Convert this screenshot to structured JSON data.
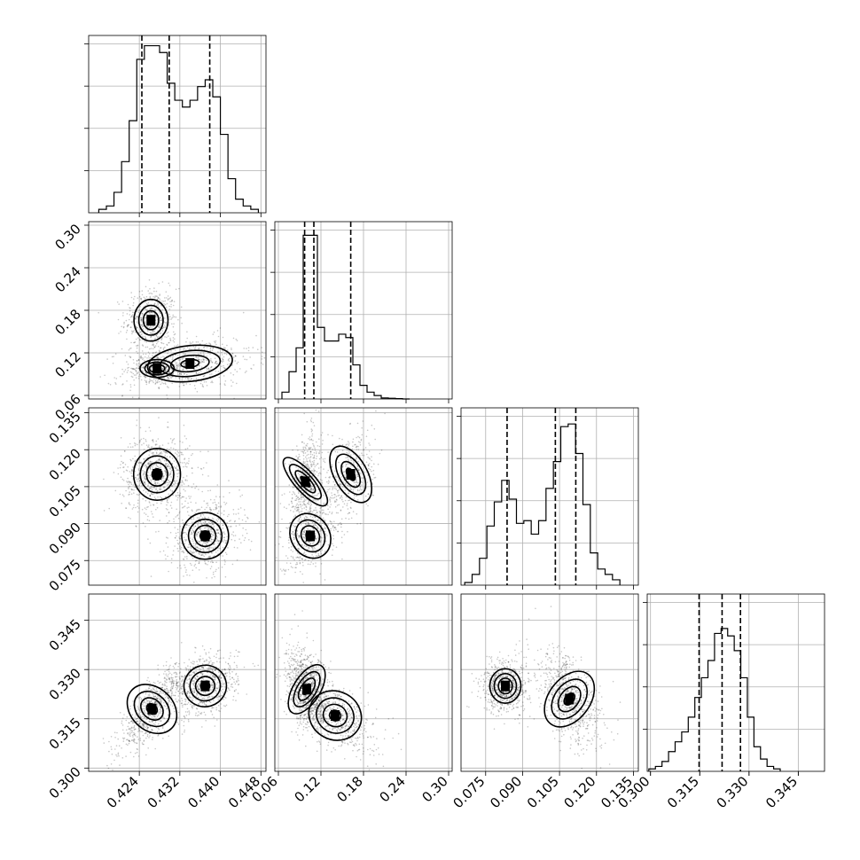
{
  "chart_data": {
    "type": "corner",
    "grid": true,
    "parameters": [
      {
        "range": [
          0.414,
          0.449
        ],
        "ticks": [
          0.424,
          0.432,
          0.44,
          0.448
        ],
        "tick_labels": [
          "0.424",
          "0.432",
          "0.440",
          "0.448"
        ],
        "quantiles": [
          0.4245,
          0.4299,
          0.4379
        ],
        "hist_edges": [
          0.416,
          0.4175,
          0.419,
          0.4205,
          0.422,
          0.4235,
          0.425,
          0.4265,
          0.428,
          0.4295,
          0.431,
          0.4325,
          0.434,
          0.4355,
          0.437,
          0.4385,
          0.44,
          0.4415,
          0.443,
          0.4445,
          0.446,
          0.4475
        ],
        "hist_counts": [
          1,
          2,
          6,
          15,
          27,
          45,
          49,
          49,
          47,
          38,
          33,
          31,
          33,
          37,
          39,
          34,
          23,
          10,
          4,
          2,
          1
        ],
        "hist_ymax": 52
      },
      {
        "range": [
          0.055,
          0.305
        ],
        "ticks": [
          0.06,
          0.12,
          0.18,
          0.24,
          0.3
        ],
        "tick_labels": [
          "0.06",
          "0.12",
          "0.18",
          "0.24",
          "0.30"
        ],
        "quantiles": [
          0.097,
          0.11,
          0.162
        ],
        "hist_edges": [
          0.065,
          0.075,
          0.085,
          0.095,
          0.105,
          0.115,
          0.125,
          0.135,
          0.145,
          0.155,
          0.165,
          0.175,
          0.185,
          0.195,
          0.205,
          0.215,
          0.225,
          0.235,
          0.245
        ],
        "hist_counts": [
          2,
          8,
          15,
          48,
          48,
          21,
          17,
          17,
          19,
          18,
          10,
          4,
          2,
          1,
          0.3,
          0.2,
          0.1,
          0
        ],
        "hist_ymax": 52
      },
      {
        "range": [
          0.065,
          0.137
        ],
        "ticks": [
          0.075,
          0.09,
          0.105,
          0.12,
          0.135
        ],
        "tick_labels": [
          "0.075",
          "0.090",
          "0.105",
          "0.120",
          "0.135"
        ],
        "quantiles": [
          0.0837,
          0.1033,
          0.1116
        ],
        "hist_edges": [
          0.0665,
          0.0695,
          0.0725,
          0.0755,
          0.0785,
          0.0815,
          0.0845,
          0.0875,
          0.0905,
          0.0935,
          0.0965,
          0.0995,
          0.1025,
          0.1055,
          0.1085,
          0.1115,
          0.1145,
          0.1175,
          0.1205,
          0.1235,
          0.1265,
          0.1295
        ],
        "hist_counts": [
          1,
          4,
          10,
          22,
          31,
          39,
          32,
          23,
          24,
          19,
          24,
          36,
          46,
          59,
          60,
          49,
          30,
          12,
          6,
          4,
          2
        ],
        "hist_ymax": 66
      },
      {
        "range": [
          0.299,
          0.353
        ],
        "ticks": [
          0.3,
          0.315,
          0.33,
          0.345
        ],
        "tick_labels": [
          "0.300",
          "0.315",
          "0.330",
          "0.345"
        ],
        "quantiles": [
          0.3148,
          0.3218,
          0.3274
        ],
        "hist_edges": [
          0.2995,
          0.3015,
          0.3035,
          0.3055,
          0.3075,
          0.3095,
          0.3115,
          0.3135,
          0.3155,
          0.3175,
          0.3195,
          0.3215,
          0.3235,
          0.3255,
          0.3275,
          0.3295,
          0.3315,
          0.3335,
          0.3355,
          0.3375,
          0.3395
        ],
        "hist_counts": [
          1,
          2,
          4,
          8,
          12,
          16,
          22,
          30,
          38,
          45,
          56,
          58,
          55,
          49,
          38,
          22,
          10,
          5,
          2,
          1
        ],
        "hist_ymax": 72
      }
    ],
    "pairs": [
      {
        "x": 0,
        "y": 1,
        "modes": [
          {
            "c": [
              0.4263,
              0.166
            ],
            "s": [
              0.0016,
              0.014
            ],
            "w": 0.55,
            "r": 0.0
          },
          {
            "c": [
              0.434,
              0.105
            ],
            "s": [
              0.004,
              0.012
            ],
            "w": 0.6,
            "r": 0.25
          },
          {
            "c": [
              0.4275,
              0.098
            ],
            "s": [
              0.0016,
              0.006
            ],
            "w": 0.35,
            "r": 0.0
          }
        ]
      },
      {
        "x": 0,
        "y": 2,
        "modes": [
          {
            "c": [
              0.4275,
              0.11
            ],
            "s": [
              0.0022,
              0.005
            ],
            "w": 0.65,
            "r": 0.0
          },
          {
            "c": [
              0.437,
              0.085
            ],
            "s": [
              0.0022,
              0.0045
            ],
            "w": 0.55,
            "r": 0.2
          }
        ]
      },
      {
        "x": 0,
        "y": 3,
        "modes": [
          {
            "c": [
              0.4265,
              0.318
            ],
            "s": [
              0.002,
              0.004
            ],
            "w": 0.6,
            "r": 0.8
          },
          {
            "c": [
              0.437,
              0.325
            ],
            "s": [
              0.002,
              0.003
            ],
            "w": 0.55,
            "r": 0.3
          }
        ]
      },
      {
        "x": 1,
        "y": 2,
        "modes": [
          {
            "c": [
              0.098,
              0.107
            ],
            "s": [
              0.007,
              0.006
            ],
            "w": 0.6,
            "r": 0.3
          },
          {
            "c": [
              0.162,
              0.11
            ],
            "s": [
              0.011,
              0.006
            ],
            "w": 0.45,
            "r": 0.3
          },
          {
            "c": [
              0.105,
              0.085
            ],
            "s": [
              0.013,
              0.0045
            ],
            "w": 0.45,
            "r": 0.5
          }
        ]
      },
      {
        "x": 1,
        "y": 3,
        "modes": [
          {
            "c": [
              0.1,
              0.324
            ],
            "s": [
              0.009,
              0.004
            ],
            "w": 0.65,
            "r": -0.3
          },
          {
            "c": [
              0.14,
              0.316
            ],
            "s": [
              0.018,
              0.0035
            ],
            "w": 0.45,
            "r": -0.6
          }
        ]
      },
      {
        "x": 2,
        "y": 3,
        "modes": [
          {
            "c": [
              0.083,
              0.325
            ],
            "s": [
              0.003,
              0.0025
            ],
            "w": 0.6,
            "r": 0.0
          },
          {
            "c": [
              0.109,
              0.321
            ],
            "s": [
              0.004,
              0.0045
            ],
            "w": 0.7,
            "r": -0.5
          }
        ]
      }
    ],
    "y_axis_labels_rows": {
      "1": [
        "0.06",
        "0.12",
        "0.18",
        "0.24",
        "0.30"
      ],
      "2": [
        "0.075",
        "0.090",
        "0.105",
        "0.120",
        "0.135"
      ],
      "3": [
        "0.300",
        "0.315",
        "0.330",
        "0.345"
      ]
    }
  }
}
